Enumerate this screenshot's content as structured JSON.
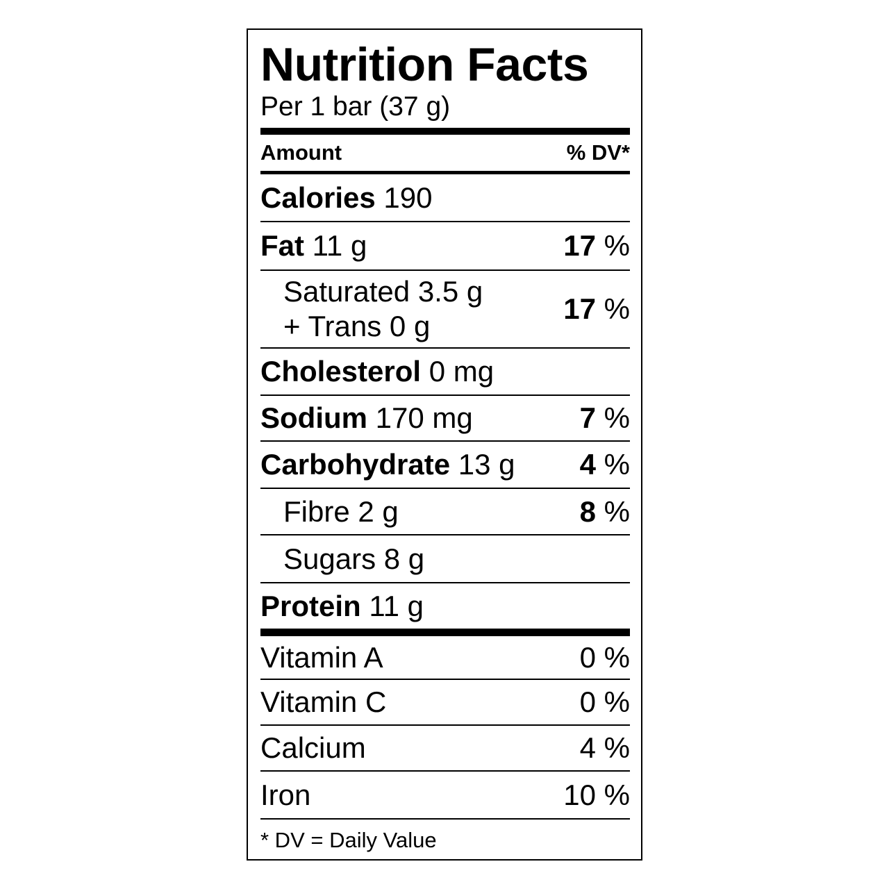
{
  "title": "Nutrition Facts",
  "serving": "Per 1 bar (37 g)",
  "header": {
    "amount": "Amount",
    "dv": "% DV*"
  },
  "percent_sign": "%",
  "calories": {
    "label": "Calories",
    "value": "190"
  },
  "nutrients": [
    {
      "label": "Fat",
      "amount": "11 g",
      "dv": "17"
    },
    {
      "label": "Saturated",
      "amount": "3.5 g",
      "label2": "+ Trans",
      "amount2": "0 g",
      "dv": "17"
    },
    {
      "label": "Cholesterol",
      "amount": "0 mg"
    },
    {
      "label": "Sodium",
      "amount": "170 mg",
      "dv": "7"
    },
    {
      "label": "Carbohydrate",
      "amount": "13 g",
      "dv": "4"
    },
    {
      "label": "Fibre",
      "amount": "2 g",
      "dv": "8"
    },
    {
      "label": "Sugars",
      "amount": "8 g"
    },
    {
      "label": "Protein",
      "amount": "11 g"
    }
  ],
  "vitamins": [
    {
      "label": "Vitamin A",
      "dv": "0"
    },
    {
      "label": "Vitamin C",
      "dv": "0"
    },
    {
      "label": "Calcium",
      "dv": "4"
    },
    {
      "label": "Iron",
      "dv": "10"
    }
  ],
  "footnote": "* DV = Daily Value"
}
